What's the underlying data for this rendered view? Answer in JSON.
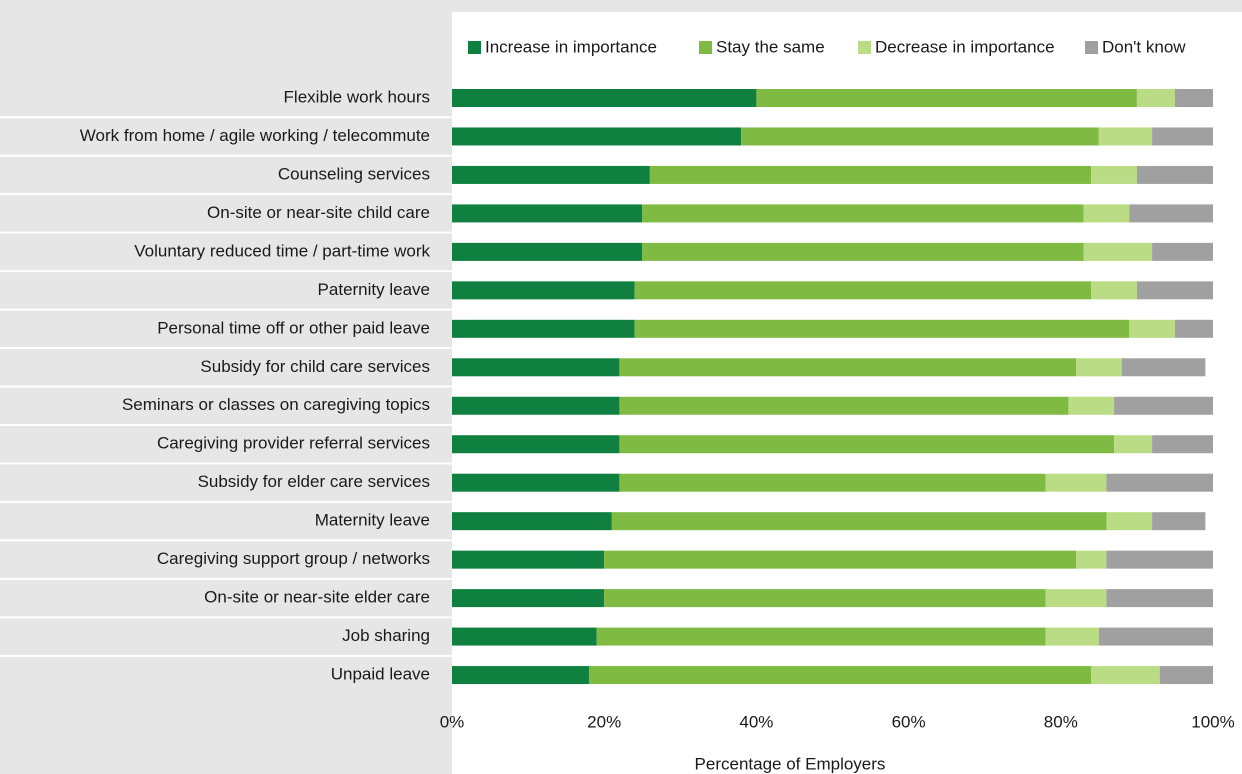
{
  "chart_data": {
    "type": "bar",
    "orientation": "horizontal",
    "stacked": true,
    "x_label": "Percentage of Employers",
    "categories": [
      "Flexible work hours",
      "Work from home / agile working / telecommute",
      "Counseling services",
      "On-site or near-site child care",
      "Voluntary reduced time / part-time work",
      "Paternity leave",
      "Personal time off or other paid leave",
      "Subsidy for child care services",
      "Seminars or classes on caregiving topics",
      "Caregiving provider referral services",
      "Subsidy for elder care services",
      "Maternity leave",
      "Caregiving support group / networks",
      "On-site or near-site elder care",
      "Job sharing",
      "Unpaid leave"
    ],
    "series": [
      {
        "name": "Increase in importance",
        "color": "#0f8040",
        "values": [
          40,
          38,
          26,
          25,
          25,
          24,
          24,
          22,
          22,
          22,
          22,
          21,
          20,
          20,
          19,
          18
        ]
      },
      {
        "name": "Stay the same",
        "color": "#7fba42",
        "values": [
          50,
          47,
          58,
          58,
          58,
          60,
          65,
          60,
          59,
          65,
          56,
          65,
          62,
          58,
          59,
          66
        ]
      },
      {
        "name": "Decrease in importance",
        "color": "#b9dc84",
        "values": [
          5,
          7,
          6,
          6,
          9,
          6,
          6,
          6,
          6,
          5,
          8,
          6,
          4,
          8,
          7,
          9
        ]
      },
      {
        "name": "Don't know",
        "color": "#a0a0a0",
        "values": [
          5,
          8,
          10,
          11,
          8,
          10,
          5,
          11,
          13,
          8,
          14,
          7,
          14,
          14,
          15,
          7
        ]
      }
    ],
    "xlim": [
      0,
      100
    ],
    "xticks": [
      {
        "value": 0,
        "label": "0%"
      },
      {
        "value": 20,
        "label": "20%"
      },
      {
        "value": 40,
        "label": "40%"
      },
      {
        "value": 60,
        "label": "60%"
      },
      {
        "value": 80,
        "label": "80%"
      },
      {
        "value": 100,
        "label": "100%"
      }
    ],
    "legend": "top"
  }
}
